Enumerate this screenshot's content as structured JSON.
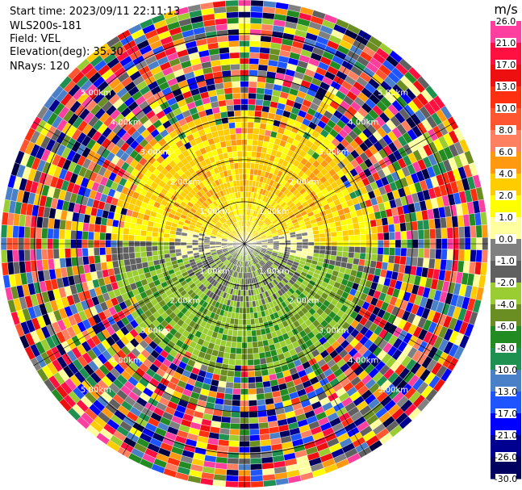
{
  "header": {
    "start_time": "Start time: 2023/09/11 22:11:13",
    "instrument": "WLS200s-181",
    "field": "Field: VEL",
    "elevation": "Elevation(deg): 35.30",
    "nrays": "NRays: 120"
  },
  "chart_data": {
    "type": "heatmap",
    "projection": "polar",
    "field": "VEL",
    "units": "m/s",
    "n_rays": 120,
    "range_rings_km": [
      1.0,
      2.0,
      3.0,
      4.0,
      5.0
    ],
    "ring_labels": [
      "1.00km",
      "2.00km",
      "3.00km",
      "4.00km",
      "5.00km"
    ],
    "max_range_km": 5.8,
    "n_range_gates": 42,
    "colorbar": {
      "unit_label": "m/s",
      "levels": [
        26.0,
        21.0,
        17.0,
        13.0,
        10.0,
        8.0,
        6.0,
        4.0,
        2.0,
        1.0,
        0.0,
        -1.0,
        -2.0,
        -4.0,
        -6.0,
        -8.0,
        -10.0,
        -13.0,
        -17.0,
        -21.0,
        -26.0,
        -30.0
      ],
      "tick_labels": [
        "26.0",
        "21.0",
        "17.0",
        "13.0",
        "10.0",
        "8.0",
        "6.0",
        "4.0",
        "2.0",
        "1.0",
        "0.0",
        "-1.0",
        "-2.0",
        "-4.0",
        "-6.0",
        "-8.0",
        "-10.0",
        "-13.0",
        "-17.0",
        "-21.0",
        "-26.0",
        "-30.0"
      ],
      "colors": [
        "#ff3fa0",
        "#ff1040",
        "#ee1010",
        "#ff3010",
        "#ff5530",
        "#ff8060",
        "#ff9a10",
        "#ffcc00",
        "#ffff00",
        "#ffffa0",
        "#808080",
        "#606060",
        "#9acd32",
        "#6b8e23",
        "#228b22",
        "#1e9050",
        "#4a80c8",
        "#1f55ff",
        "#0000ff",
        "#000090",
        "#000060",
        "#000040"
      ]
    },
    "regions_description_values": {
      "north_near_ms": 2.0,
      "north_mid_ms": 4.0,
      "south_near_ms": -2.0,
      "south_mid_ms": -6.0,
      "east_west_near_ms": 0.0
    }
  }
}
